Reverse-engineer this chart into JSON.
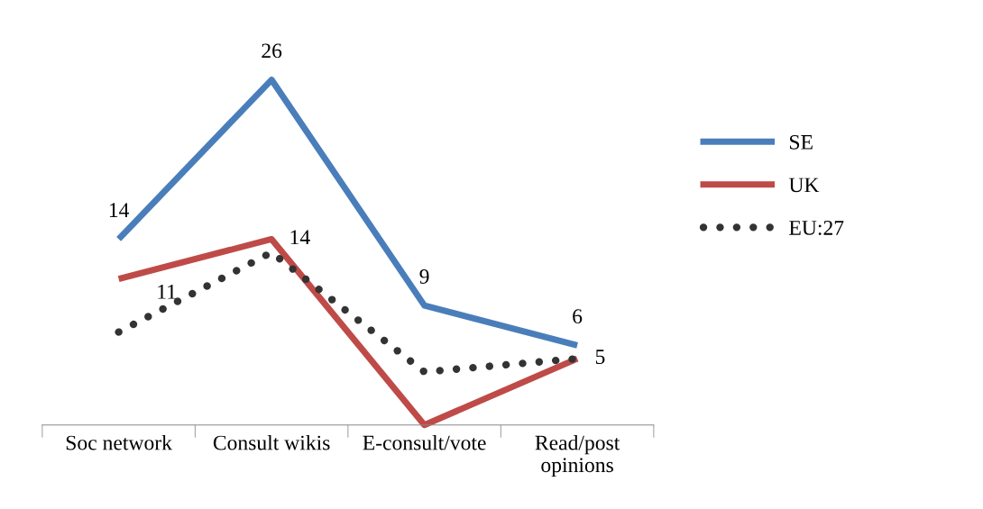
{
  "chart_data": {
    "type": "line",
    "categories": [
      "Soc network",
      "Consult wikis",
      "E-consult/vote",
      "Read/post\nopinions"
    ],
    "series": [
      {
        "name": "SE",
        "color": "#4a7ebb",
        "line_style": "solid",
        "values": [
          14,
          26,
          9,
          6
        ],
        "value_labels": [
          "14",
          "26",
          "9",
          "6"
        ]
      },
      {
        "name": "UK",
        "color": "#be4b48",
        "line_style": "solid",
        "values": [
          11,
          14,
          0,
          5
        ],
        "value_labels": [
          "11",
          "14",
          null,
          "5"
        ]
      },
      {
        "name": "EU:27",
        "color": "#333333",
        "line_style": "dotted",
        "values": [
          7,
          13,
          4,
          5
        ]
      }
    ],
    "grid": false,
    "legend": "right",
    "marker": "none"
  }
}
